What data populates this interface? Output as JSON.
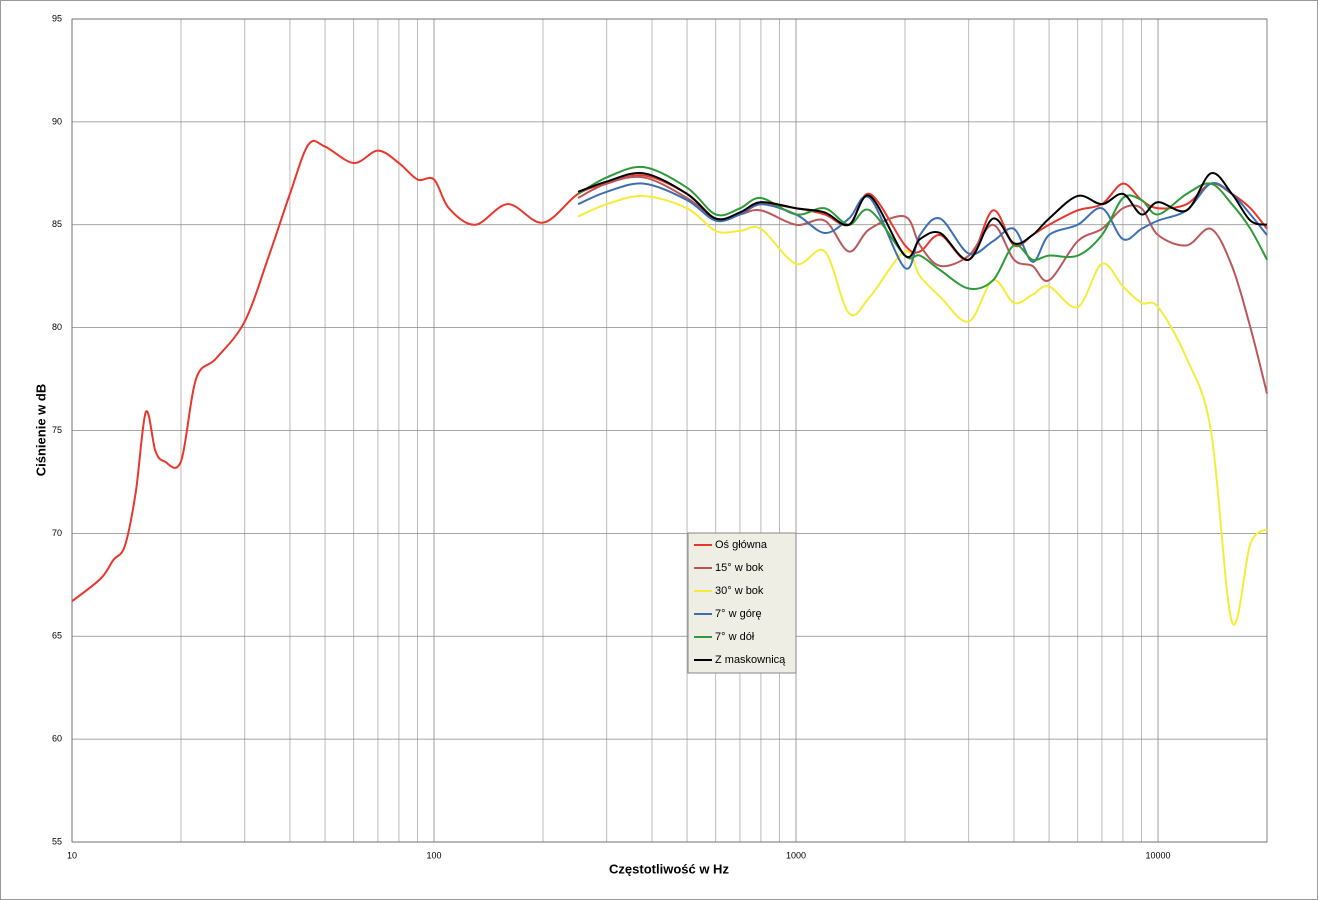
{
  "chart_data": {
    "type": "line",
    "xscale": "log",
    "grid": true,
    "legend": "center",
    "xlabel": "Częstotliwość w Hz",
    "ylabel": "Ciśnienie w dB",
    "xlim": [
      10,
      20000
    ],
    "ylim": [
      55,
      95
    ],
    "xticks": [
      10,
      100,
      1000,
      10000
    ],
    "yticks": [
      55,
      60,
      65,
      70,
      75,
      80,
      85,
      90,
      95
    ],
    "x": [
      10,
      12,
      13,
      14,
      15,
      16,
      17,
      18,
      20,
      22,
      25,
      30,
      35,
      40,
      45,
      50,
      60,
      70,
      80,
      90,
      100,
      110,
      130,
      160,
      200,
      250,
      300,
      380,
      500,
      600,
      700,
      800,
      1000,
      1200,
      1400,
      1600,
      2000,
      2200,
      2500,
      3000,
      3500,
      4000,
      4500,
      5000,
      6000,
      7000,
      8000,
      9000,
      10000,
      12000,
      14000,
      16000,
      18000,
      20000
    ],
    "series": [
      {
        "name": "Oś główna",
        "color": "#e8372c",
        "values": [
          66.7,
          67.8,
          68.7,
          69.4,
          72,
          75.9,
          74,
          73.5,
          73.5,
          77.5,
          78.5,
          80.3,
          83.5,
          86.5,
          88.9,
          88.8,
          88,
          88.6,
          88,
          87.2,
          87.2,
          85.8,
          85,
          86,
          85.1,
          86.5,
          87,
          87.4,
          86.5,
          85.3,
          85.5,
          86,
          85.8,
          85.5,
          85,
          86.5,
          84,
          83.7,
          84.5,
          83.3,
          85.7,
          84,
          84.5,
          85,
          85.7,
          86,
          87,
          86.2,
          85.8,
          86,
          87,
          86.5,
          85.8,
          84.8
        ]
      },
      {
        "name": "15° w bok",
        "color": "#b9585a",
        "values": [
          null,
          null,
          null,
          null,
          null,
          null,
          null,
          null,
          null,
          null,
          null,
          null,
          null,
          null,
          null,
          null,
          null,
          null,
          null,
          null,
          null,
          null,
          null,
          null,
          null,
          86.3,
          87,
          87.3,
          86.3,
          85.3,
          85.5,
          85.7,
          85,
          85.2,
          83.7,
          84.8,
          85.4,
          84,
          83,
          83.5,
          85,
          83.3,
          83,
          82.3,
          84.2,
          84.8,
          85.8,
          85.8,
          84.5,
          84,
          84.8,
          83,
          80,
          76.8
        ]
      },
      {
        "name": "30° w bok",
        "color": "#f5ec3a",
        "values": [
          null,
          null,
          null,
          null,
          null,
          null,
          null,
          null,
          null,
          null,
          null,
          null,
          null,
          null,
          null,
          null,
          null,
          null,
          null,
          null,
          null,
          null,
          null,
          null,
          null,
          85.4,
          86,
          86.4,
          85.8,
          84.7,
          84.7,
          84.8,
          83.1,
          83.7,
          80.7,
          81.5,
          83.7,
          82.5,
          81.5,
          80.3,
          82.3,
          81.2,
          81.6,
          82,
          81,
          83.1,
          82,
          81.2,
          81,
          78.5,
          75,
          65.7,
          69.5,
          70.2
        ]
      },
      {
        "name": "7° w górę",
        "color": "#3d6fb0",
        "values": [
          null,
          null,
          null,
          null,
          null,
          null,
          null,
          null,
          null,
          null,
          null,
          null,
          null,
          null,
          null,
          null,
          null,
          null,
          null,
          null,
          null,
          null,
          null,
          null,
          null,
          86,
          86.6,
          87,
          86.2,
          85.2,
          85.5,
          86,
          85.5,
          84.6,
          85.3,
          86.3,
          82.9,
          84.5,
          85.3,
          83.6,
          84.2,
          84.8,
          83.2,
          84.5,
          85,
          85.8,
          84.3,
          84.8,
          85.2,
          85.7,
          87,
          86.5,
          85.5,
          84.5
        ]
      },
      {
        "name": "7° w dół",
        "color": "#2f9a3a",
        "values": [
          null,
          null,
          null,
          null,
          null,
          null,
          null,
          null,
          null,
          null,
          null,
          null,
          null,
          null,
          null,
          null,
          null,
          null,
          null,
          null,
          null,
          null,
          null,
          null,
          null,
          86.5,
          87.3,
          87.8,
          86.8,
          85.5,
          85.8,
          86.3,
          85.5,
          85.8,
          85,
          85.7,
          83.5,
          83.5,
          82.8,
          81.9,
          82.3,
          84,
          83.3,
          83.5,
          83.5,
          84.5,
          86.3,
          86.2,
          85.5,
          86.5,
          87,
          86,
          84.8,
          83.3
        ]
      },
      {
        "name": "Z maskownicą",
        "color": "#000000",
        "values": [
          null,
          null,
          null,
          null,
          null,
          null,
          null,
          null,
          null,
          null,
          null,
          null,
          null,
          null,
          null,
          null,
          null,
          null,
          null,
          null,
          null,
          null,
          null,
          null,
          null,
          86.6,
          87.1,
          87.5,
          86.5,
          85.3,
          85.6,
          86.1,
          85.8,
          85.6,
          85,
          86.4,
          83.5,
          84.3,
          84.6,
          83.3,
          85.3,
          84.1,
          84.5,
          85.3,
          86.4,
          86,
          86.5,
          85.5,
          86.1,
          85.7,
          87.5,
          86.5,
          85.2,
          85
        ]
      }
    ]
  }
}
